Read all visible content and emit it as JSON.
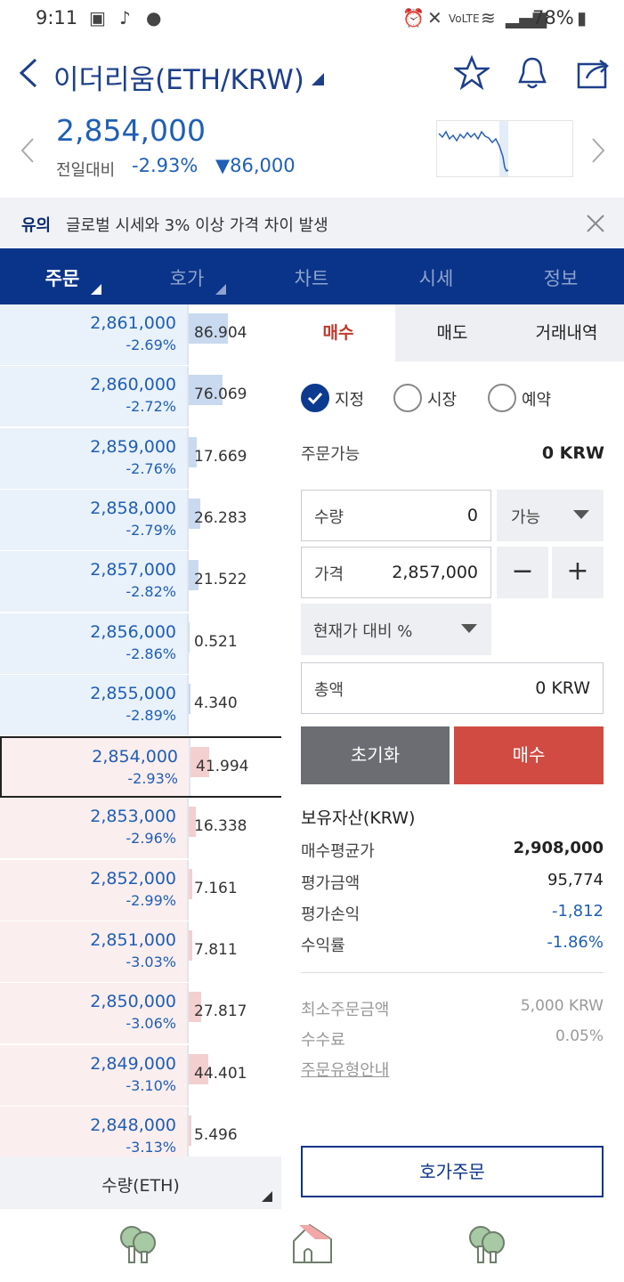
{
  "status": {
    "time": "9:11",
    "battery": "78%",
    "network": "VoLTE"
  },
  "header": {
    "title": "이더리움(ETH/KRW)"
  },
  "price": {
    "current": "2,854,000",
    "compare_label": "전일대비",
    "change_pct": "-2.93%",
    "change_amt": "▼86,000"
  },
  "notice": {
    "tag": "유의",
    "message": "글로벌 시세와 3% 이상 가격 차이 발생"
  },
  "tabs": [
    {
      "label": "주문"
    },
    {
      "label": "호가"
    },
    {
      "label": "차트"
    },
    {
      "label": "시세"
    },
    {
      "label": "정보"
    }
  ],
  "orderbook": {
    "asks": [
      {
        "price": "2,861,000",
        "pct": "-2.69%",
        "qty": "86.904",
        "fill": 0.84
      },
      {
        "price": "2,860,000",
        "pct": "-2.72%",
        "qty": "76.069",
        "fill": 0.74
      },
      {
        "price": "2,859,000",
        "pct": "-2.76%",
        "qty": "17.669",
        "fill": 0.17
      },
      {
        "price": "2,858,000",
        "pct": "-2.79%",
        "qty": "26.283",
        "fill": 0.25
      },
      {
        "price": "2,857,000",
        "pct": "-2.82%",
        "qty": "21.522",
        "fill": 0.21
      },
      {
        "price": "2,856,000",
        "pct": "-2.86%",
        "qty": "0.521",
        "fill": 0.01
      },
      {
        "price": "2,855,000",
        "pct": "-2.89%",
        "qty": "4.340",
        "fill": 0.04
      }
    ],
    "bids": [
      {
        "price": "2,854,000",
        "pct": "-2.93%",
        "qty": "41.994",
        "fill": 0.41,
        "current": true
      },
      {
        "price": "2,853,000",
        "pct": "-2.96%",
        "qty": "16.338",
        "fill": 0.16
      },
      {
        "price": "2,852,000",
        "pct": "-2.99%",
        "qty": "7.161",
        "fill": 0.07
      },
      {
        "price": "2,851,000",
        "pct": "-3.03%",
        "qty": "7.811",
        "fill": 0.08
      },
      {
        "price": "2,850,000",
        "pct": "-3.06%",
        "qty": "27.817",
        "fill": 0.27
      },
      {
        "price": "2,849,000",
        "pct": "-3.10%",
        "qty": "44.401",
        "fill": 0.43
      },
      {
        "price": "2,848,000",
        "pct": "-3.13%",
        "qty": "5.496",
        "fill": 0.05
      }
    ],
    "footer_label": "수량(ETH)"
  },
  "order_panel": {
    "sub_tabs": [
      "매수",
      "매도",
      "거래내역"
    ],
    "order_types": [
      "지정",
      "시장",
      "예약"
    ],
    "available_label": "주문가능",
    "available_value": "0 KRW",
    "qty_label": "수량",
    "qty_value": "0",
    "qty_select": "가능",
    "price_label": "가격",
    "price_value": "2,857,000",
    "minus": "−",
    "plus": "+",
    "pct_select": "현재가 대비 %",
    "total_label": "총액",
    "total_value": "0 KRW",
    "reset_label": "초기화",
    "buy_label": "매수",
    "holdings_title": "보유자산(KRW)",
    "holdings": [
      {
        "k": "매수평균가",
        "v": "2,908,000"
      },
      {
        "k": "평가금액",
        "v": "95,774"
      },
      {
        "k": "평가손익",
        "v": "-1,812"
      },
      {
        "k": "수익률",
        "v": "-1.86%"
      }
    ],
    "min_order_label": "최소주문금액",
    "min_order_value": "5,000 KRW",
    "fee_label": "수수료",
    "fee_value": "0.05%",
    "guide_link": "주문유형안내",
    "hoga_order": "호가주문"
  },
  "colors": {
    "navy": "#0a3489",
    "blue_text": "#1f5fb4",
    "red": "#d24b43",
    "ask_bg": "#e9f1fa",
    "bid_bg": "#fbeeee"
  }
}
